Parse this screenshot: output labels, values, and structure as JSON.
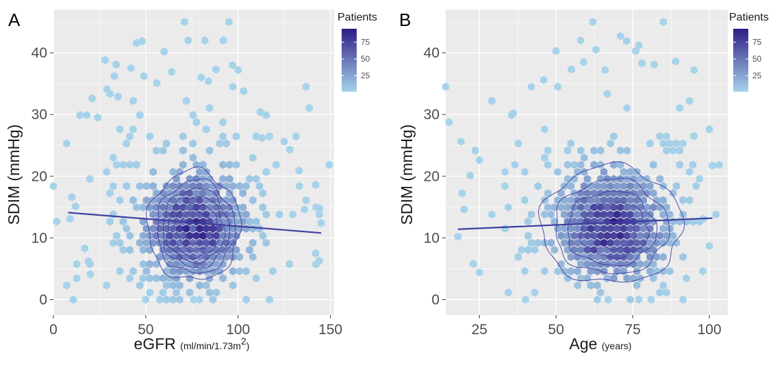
{
  "colors": {
    "panel_bg": "#ebebeb",
    "grid_major": "#ffffff",
    "hex_low": "#a6d3ea",
    "hex_high": "#2e1d86",
    "contour": "#3f3aa3",
    "regression": "#3d3d9e"
  },
  "chart_data": [
    {
      "type": "hexbin",
      "panel_label": "A",
      "xlabel": "eGFR",
      "xlabel_unit": "(ml/min/1.73m",
      "xlabel_unit_sup": "2",
      "xlabel_unit_end": ")",
      "ylabel": "SDIM (mmHg)",
      "xlim": [
        0,
        152
      ],
      "ylim": [
        -2.5,
        47
      ],
      "x_ticks": [
        0,
        50,
        100,
        150
      ],
      "x_tick_labels": [
        "0",
        "50",
        "100",
        "150"
      ],
      "y_ticks": [
        0,
        10,
        20,
        30,
        40
      ],
      "y_tick_labels": [
        "0",
        "10",
        "20",
        "30",
        "40"
      ],
      "grid": true,
      "legend": {
        "title": "Patients",
        "position": "right",
        "ticks": [
          25,
          50,
          75
        ],
        "tick_labels": [
          "25",
          "50",
          "75"
        ],
        "range": [
          1,
          95
        ]
      },
      "density_center": [
        76,
        11
      ],
      "density_spread": [
        20,
        5.5
      ],
      "hex_count_peak": 90,
      "hex_size_x": 3.6,
      "hex_size_y": 1.15,
      "outliers": [
        [
          28,
          38.8
        ],
        [
          34,
          38.1
        ],
        [
          29,
          34.1
        ],
        [
          35,
          32.9
        ],
        [
          33,
          36.2
        ],
        [
          45,
          41.6
        ],
        [
          48,
          41.9
        ],
        [
          49,
          36.2
        ],
        [
          56,
          35.1
        ],
        [
          71,
          45
        ],
        [
          73,
          42
        ],
        [
          80,
          36
        ],
        [
          84,
          35.4
        ],
        [
          88,
          37.3
        ],
        [
          92,
          42
        ],
        [
          95,
          45
        ],
        [
          97,
          38
        ],
        [
          100,
          37.2
        ],
        [
          82,
          42
        ],
        [
          60,
          40.2
        ],
        [
          64,
          36.9
        ],
        [
          42,
          37.5
        ],
        [
          103,
          33.8
        ],
        [
          112,
          30.4
        ],
        [
          113,
          26.2
        ],
        [
          125,
          25.6
        ],
        [
          128,
          24.3
        ],
        [
          142,
          18.6
        ],
        [
          144,
          14.8
        ],
        [
          145,
          12.4
        ],
        [
          142,
          7.5
        ],
        [
          144,
          6.3
        ],
        [
          50,
          0
        ],
        [
          76,
          0
        ],
        [
          79,
          0
        ],
        [
          117,
          0
        ],
        [
          133,
          20.9
        ],
        [
          136,
          14.6
        ],
        [
          10,
          16.6
        ],
        [
          12,
          15.1
        ],
        [
          9,
          13.1
        ],
        [
          17,
          8.3
        ],
        [
          19,
          6.2
        ],
        [
          20,
          4.1
        ],
        [
          21,
          32.6
        ],
        [
          24,
          29.5
        ]
      ],
      "regression": {
        "x": [
          8,
          145
        ],
        "y": [
          14.1,
          10.8
        ]
      },
      "contours": [
        {
          "cx": 76,
          "cy": 11.3,
          "rx": 25,
          "ry": 8.6
        },
        {
          "cx": 77,
          "cy": 11.2,
          "rx": 21,
          "ry": 7.3
        },
        {
          "cx": 77,
          "cy": 11.1,
          "rx": 18,
          "ry": 6.2
        },
        {
          "cx": 77,
          "cy": 11.0,
          "rx": 15.5,
          "ry": 5.2
        },
        {
          "cx": 77,
          "cy": 10.9,
          "rx": 12.5,
          "ry": 4.2
        },
        {
          "cx": 77,
          "cy": 10.9,
          "rx": 9.5,
          "ry": 3.1
        },
        {
          "cx": 77,
          "cy": 10.8,
          "rx": 6,
          "ry": 1.9
        }
      ]
    },
    {
      "type": "hexbin",
      "panel_label": "B",
      "xlabel": "Age",
      "xlabel_unit": "(years)",
      "xlabel_unit_sup": "",
      "xlabel_unit_end": "",
      "ylabel": "SDIM (mmHg)",
      "xlim": [
        14,
        106
      ],
      "ylim": [
        -2.5,
        47
      ],
      "x_ticks": [
        25,
        50,
        75,
        100
      ],
      "x_tick_labels": [
        "25",
        "50",
        "75",
        "100"
      ],
      "y_ticks": [
        0,
        10,
        20,
        30,
        40
      ],
      "y_tick_labels": [
        "0",
        "10",
        "20",
        "30",
        "40"
      ],
      "grid": true,
      "legend": {
        "title": "Patients",
        "position": "right",
        "ticks": [
          25,
          50,
          75
        ],
        "tick_labels": [
          "25",
          "50",
          "75"
        ],
        "range": [
          1,
          95
        ]
      },
      "density_center": [
        68,
        11
      ],
      "density_spread": [
        13,
        5.5
      ],
      "hex_count_peak": 95,
      "hex_size_x": 2.15,
      "hex_size_y": 1.15,
      "outliers": [
        [
          19,
          25.6
        ],
        [
          18,
          10.2
        ],
        [
          20,
          14.6
        ],
        [
          22,
          20.1
        ],
        [
          25,
          22.6
        ],
        [
          23,
          5.8
        ],
        [
          25,
          4.4
        ],
        [
          36,
          30.2
        ],
        [
          40,
          0
        ],
        [
          50,
          40.3
        ],
        [
          55,
          37.3
        ],
        [
          58,
          42
        ],
        [
          59,
          38.5
        ],
        [
          62,
          45
        ],
        [
          63,
          40.5
        ],
        [
          66,
          37.2
        ],
        [
          71,
          42.7
        ],
        [
          73,
          41.9
        ],
        [
          76,
          40.3
        ],
        [
          77,
          41.2
        ],
        [
          78,
          38.3
        ],
        [
          82,
          38.1
        ],
        [
          85,
          45
        ],
        [
          89,
          38.6
        ],
        [
          95,
          37.2
        ],
        [
          101,
          21.7
        ],
        [
          98,
          13.1
        ],
        [
          100,
          8.7
        ],
        [
          95,
          26.5
        ],
        [
          46,
          35.6
        ],
        [
          81,
          0
        ],
        [
          67,
          0
        ],
        [
          77,
          0
        ]
      ],
      "regression": {
        "x": [
          18,
          101
        ],
        "y": [
          11.4,
          13.2
        ]
      },
      "contours": [
        {
          "cx": 68,
          "cy": 11.4,
          "rx": 23,
          "ry": 9.2
        },
        {
          "cx": 68,
          "cy": 11.2,
          "rx": 18.5,
          "ry": 7.4
        },
        {
          "cx": 68,
          "cy": 11.1,
          "rx": 14.5,
          "ry": 5.8
        },
        {
          "cx": 69,
          "cy": 11.0,
          "rx": 11,
          "ry": 4.3
        },
        {
          "cx": 69,
          "cy": 10.9,
          "rx": 7,
          "ry": 2.8
        }
      ]
    }
  ]
}
